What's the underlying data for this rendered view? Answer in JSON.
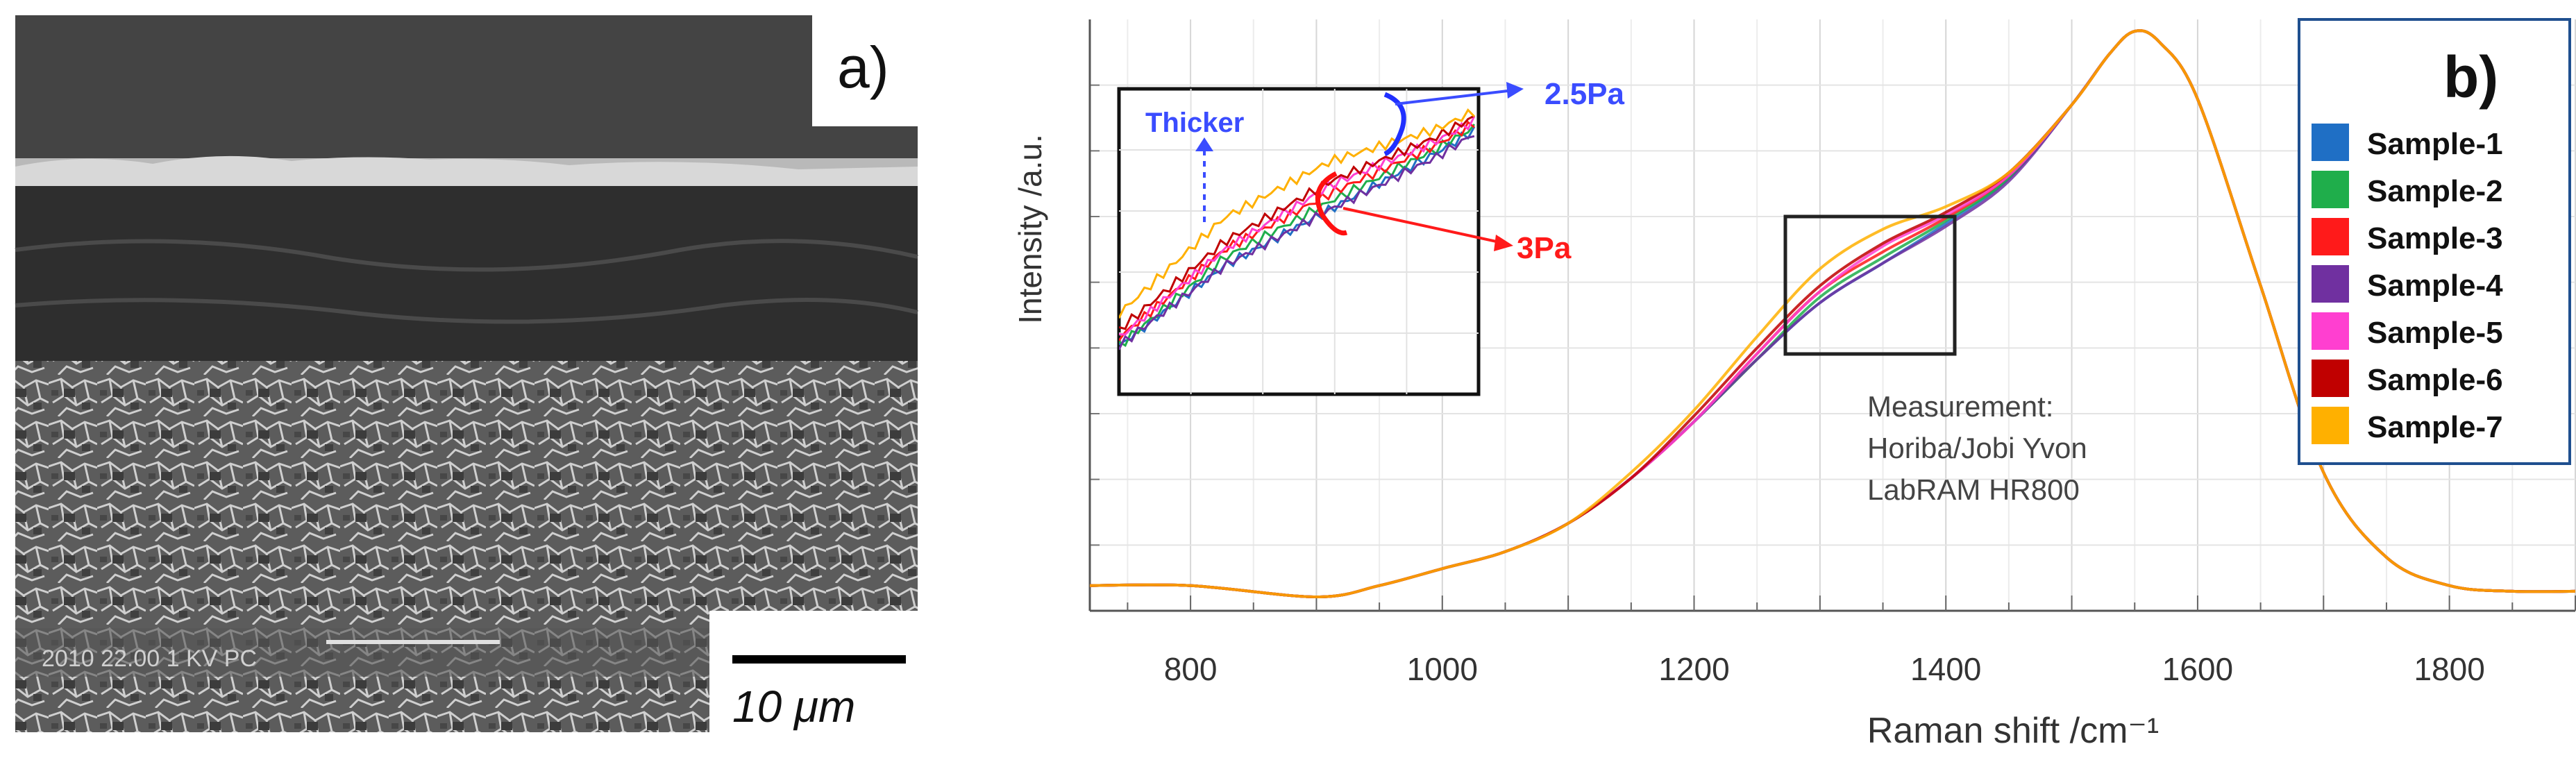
{
  "panel_a": {
    "label": "a)",
    "scale_bar_label": "10 μm",
    "sem_footer": "2010   22.00   1 KV   PC"
  },
  "panel_b": {
    "label": "b)",
    "annotation": [
      "Measurement:",
      "Horiba/Jobi Yvon",
      "LabRAM HR800"
    ],
    "inset_labels": {
      "thicker": "Thicker",
      "p_low": "2.5Pa",
      "p_high": "3Pa"
    }
  },
  "chart_data": {
    "type": "line",
    "title": "",
    "xlabel": "Raman shift /cm⁻¹",
    "ylabel": "Intensity /a.u.",
    "xlim": [
      720,
      1900
    ],
    "ylim": [
      0,
      1
    ],
    "xticks": [
      800,
      1000,
      1200,
      1400,
      1600,
      1800
    ],
    "grid": true,
    "legend_position": "top-right",
    "x": [
      720,
      800,
      900,
      950,
      1000,
      1050,
      1100,
      1150,
      1200,
      1250,
      1300,
      1350,
      1400,
      1450,
      1500,
      1530,
      1550,
      1570,
      1600,
      1650,
      1700,
      1750,
      1800,
      1850,
      1900
    ],
    "series": [
      {
        "name": "Sample-1",
        "color": "#1f6fc5",
        "values": [
          0.02,
          0.02,
          0.0,
          0.02,
          0.05,
          0.08,
          0.13,
          0.21,
          0.31,
          0.42,
          0.52,
          0.59,
          0.66,
          0.74,
          0.87,
          0.96,
          1.0,
          0.98,
          0.88,
          0.55,
          0.22,
          0.07,
          0.02,
          0.01,
          0.01
        ]
      },
      {
        "name": "Sample-2",
        "color": "#1fae4b",
        "values": [
          0.02,
          0.02,
          0.0,
          0.02,
          0.05,
          0.08,
          0.13,
          0.21,
          0.31,
          0.42,
          0.53,
          0.6,
          0.665,
          0.74,
          0.87,
          0.96,
          1.0,
          0.98,
          0.88,
          0.55,
          0.22,
          0.07,
          0.02,
          0.01,
          0.01
        ]
      },
      {
        "name": "Sample-3",
        "color": "#ff1a1a",
        "values": [
          0.02,
          0.02,
          0.0,
          0.02,
          0.05,
          0.08,
          0.13,
          0.21,
          0.31,
          0.43,
          0.54,
          0.61,
          0.67,
          0.745,
          0.87,
          0.96,
          1.0,
          0.98,
          0.88,
          0.55,
          0.22,
          0.07,
          0.02,
          0.01,
          0.01
        ]
      },
      {
        "name": "Sample-4",
        "color": "#7030a0",
        "values": [
          0.02,
          0.02,
          0.0,
          0.02,
          0.05,
          0.08,
          0.13,
          0.21,
          0.31,
          0.42,
          0.52,
          0.59,
          0.655,
          0.735,
          0.87,
          0.96,
          1.0,
          0.98,
          0.88,
          0.55,
          0.22,
          0.07,
          0.02,
          0.01,
          0.01
        ]
      },
      {
        "name": "Sample-5",
        "color": "#ff3fd0",
        "values": [
          0.02,
          0.02,
          0.0,
          0.02,
          0.05,
          0.08,
          0.13,
          0.21,
          0.31,
          0.43,
          0.54,
          0.62,
          0.675,
          0.745,
          0.87,
          0.96,
          1.0,
          0.98,
          0.88,
          0.55,
          0.22,
          0.07,
          0.02,
          0.01,
          0.01
        ]
      },
      {
        "name": "Sample-6",
        "color": "#c00000",
        "values": [
          0.02,
          0.02,
          0.0,
          0.02,
          0.05,
          0.08,
          0.13,
          0.21,
          0.32,
          0.44,
          0.55,
          0.625,
          0.68,
          0.75,
          0.87,
          0.96,
          1.0,
          0.98,
          0.88,
          0.55,
          0.22,
          0.07,
          0.02,
          0.01,
          0.01
        ]
      },
      {
        "name": "Sample-7",
        "color": "#ffb000",
        "values": [
          0.02,
          0.02,
          0.0,
          0.02,
          0.05,
          0.08,
          0.13,
          0.22,
          0.33,
          0.46,
          0.58,
          0.65,
          0.69,
          0.75,
          0.87,
          0.96,
          1.0,
          0.98,
          0.88,
          0.55,
          0.22,
          0.07,
          0.02,
          0.01,
          0.01
        ]
      }
    ]
  }
}
